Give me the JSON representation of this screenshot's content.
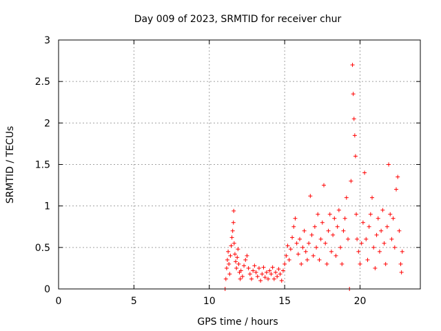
{
  "chart_data": {
    "type": "scatter",
    "title": "Day 009 of 2023, SRMTID for receiver chur",
    "xlabel": "GPS time / hours",
    "ylabel": "SRMTID / TECUs",
    "xlim": [
      0,
      24
    ],
    "ylim": [
      0,
      3
    ],
    "x_ticks": [
      0,
      5,
      10,
      15,
      20
    ],
    "x_tick_labels": [
      "0",
      "5",
      "10",
      "15",
      "20"
    ],
    "y_ticks": [
      0,
      0.5,
      1,
      1.5,
      2,
      2.5,
      3
    ],
    "y_tick_labels": [
      "0",
      "0.5",
      "1",
      "1.5",
      "2",
      "2.5",
      "3"
    ],
    "grid": true,
    "marker": "+",
    "series": [
      {
        "name": "SRMTID",
        "color": "#ff0000",
        "points": [
          [
            11.05,
            0.0
          ],
          [
            11.1,
            0.12
          ],
          [
            11.15,
            0.25
          ],
          [
            11.2,
            0.35
          ],
          [
            11.25,
            0.45
          ],
          [
            11.3,
            0.3
          ],
          [
            11.35,
            0.18
          ],
          [
            11.4,
            0.4
          ],
          [
            11.45,
            0.52
          ],
          [
            11.5,
            0.62
          ],
          [
            11.55,
            0.7
          ],
          [
            11.6,
            0.8
          ],
          [
            11.62,
            0.94
          ],
          [
            11.65,
            0.55
          ],
          [
            11.7,
            0.42
          ],
          [
            11.75,
            0.33
          ],
          [
            11.8,
            0.25
          ],
          [
            11.85,
            0.38
          ],
          [
            11.9,
            0.48
          ],
          [
            11.95,
            0.3
          ],
          [
            12.0,
            0.2
          ],
          [
            12.05,
            0.12
          ],
          [
            12.1,
            0.22
          ],
          [
            12.2,
            0.15
          ],
          [
            12.3,
            0.28
          ],
          [
            12.4,
            0.35
          ],
          [
            12.5,
            0.4
          ],
          [
            12.6,
            0.25
          ],
          [
            12.7,
            0.18
          ],
          [
            12.8,
            0.12
          ],
          [
            12.9,
            0.22
          ],
          [
            13.0,
            0.28
          ],
          [
            13.1,
            0.2
          ],
          [
            13.2,
            0.15
          ],
          [
            13.3,
            0.25
          ],
          [
            13.4,
            0.1
          ],
          [
            13.5,
            0.18
          ],
          [
            13.6,
            0.26
          ],
          [
            13.7,
            0.14
          ],
          [
            13.8,
            0.2
          ],
          [
            13.9,
            0.12
          ],
          [
            14.0,
            0.22
          ],
          [
            14.1,
            0.18
          ],
          [
            14.2,
            0.26
          ],
          [
            14.3,
            0.12
          ],
          [
            14.4,
            0.2
          ],
          [
            14.5,
            0.15
          ],
          [
            14.6,
            0.24
          ],
          [
            14.7,
            0.18
          ],
          [
            14.8,
            0.1
          ],
          [
            14.9,
            0.22
          ],
          [
            15.0,
            0.3
          ],
          [
            15.1,
            0.4
          ],
          [
            15.2,
            0.52
          ],
          [
            15.3,
            0.35
          ],
          [
            15.4,
            0.48
          ],
          [
            15.5,
            0.62
          ],
          [
            15.6,
            0.75
          ],
          [
            15.7,
            0.85
          ],
          [
            15.8,
            0.55
          ],
          [
            15.9,
            0.42
          ],
          [
            16.0,
            0.6
          ],
          [
            16.1,
            0.3
          ],
          [
            16.2,
            0.5
          ],
          [
            16.3,
            0.7
          ],
          [
            16.4,
            0.45
          ],
          [
            16.5,
            0.35
          ],
          [
            16.6,
            0.55
          ],
          [
            16.7,
            1.12
          ],
          [
            16.8,
            0.65
          ],
          [
            16.9,
            0.4
          ],
          [
            17.0,
            0.75
          ],
          [
            17.1,
            0.5
          ],
          [
            17.2,
            0.9
          ],
          [
            17.3,
            0.35
          ],
          [
            17.4,
            0.6
          ],
          [
            17.5,
            0.8
          ],
          [
            17.6,
            1.25
          ],
          [
            17.7,
            0.55
          ],
          [
            17.8,
            0.3
          ],
          [
            17.9,
            0.7
          ],
          [
            18.0,
            0.9
          ],
          [
            18.1,
            0.45
          ],
          [
            18.2,
            0.65
          ],
          [
            18.3,
            0.85
          ],
          [
            18.4,
            0.4
          ],
          [
            18.5,
            0.75
          ],
          [
            18.6,
            0.95
          ],
          [
            18.7,
            0.5
          ],
          [
            18.8,
            0.3
          ],
          [
            18.9,
            0.7
          ],
          [
            19.0,
            0.85
          ],
          [
            19.1,
            1.1
          ],
          [
            19.2,
            0.6
          ],
          [
            19.3,
            0.0
          ],
          [
            19.4,
            1.3
          ],
          [
            19.5,
            2.7
          ],
          [
            19.55,
            2.35
          ],
          [
            19.6,
            2.05
          ],
          [
            19.65,
            1.85
          ],
          [
            19.7,
            1.6
          ],
          [
            19.75,
            0.9
          ],
          [
            19.8,
            0.6
          ],
          [
            19.9,
            0.45
          ],
          [
            20.0,
            0.3
          ],
          [
            20.1,
            0.55
          ],
          [
            20.2,
            0.8
          ],
          [
            20.3,
            1.4
          ],
          [
            20.4,
            0.6
          ],
          [
            20.5,
            0.35
          ],
          [
            20.6,
            0.75
          ],
          [
            20.7,
            0.9
          ],
          [
            20.8,
            1.1
          ],
          [
            20.9,
            0.5
          ],
          [
            21.0,
            0.25
          ],
          [
            21.1,
            0.65
          ],
          [
            21.2,
            0.85
          ],
          [
            21.3,
            0.45
          ],
          [
            21.4,
            0.7
          ],
          [
            21.5,
            0.95
          ],
          [
            21.6,
            0.55
          ],
          [
            21.7,
            0.3
          ],
          [
            21.8,
            0.75
          ],
          [
            21.9,
            1.5
          ],
          [
            22.0,
            0.9
          ],
          [
            22.1,
            0.6
          ],
          [
            22.2,
            0.85
          ],
          [
            22.3,
            0.5
          ],
          [
            22.4,
            1.2
          ],
          [
            22.5,
            1.35
          ],
          [
            22.6,
            0.7
          ],
          [
            22.7,
            0.3
          ],
          [
            22.75,
            0.2
          ],
          [
            22.8,
            0.45
          ]
        ]
      }
    ]
  }
}
